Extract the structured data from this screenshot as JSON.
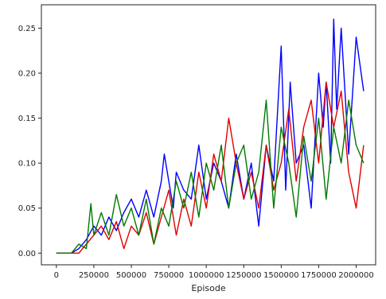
{
  "chart_data": {
    "type": "line",
    "title": "",
    "xlabel": "Episode",
    "ylabel": "",
    "xlim": [
      -100000,
      2130000
    ],
    "ylim": [
      -0.013,
      0.276
    ],
    "x_ticks": [
      0,
      250000,
      500000,
      750000,
      1000000,
      1250000,
      1500000,
      1750000,
      2000000
    ],
    "x_tick_labels": [
      "0",
      "250000",
      "500000",
      "750000",
      "1000000",
      "1250000",
      "1500000",
      "1750000",
      "2000000"
    ],
    "y_ticks": [
      0.0,
      0.05,
      0.1,
      0.15,
      0.2,
      0.25
    ],
    "y_tick_labels": [
      "0.00",
      "0.05",
      "0.10",
      "0.15",
      "0.20",
      "0.25"
    ],
    "grid": false,
    "series": [
      {
        "color": "#0000ff",
        "x": [
          0,
          100000,
          150000,
          200000,
          250000,
          300000,
          350000,
          400000,
          450000,
          500000,
          550000,
          600000,
          650000,
          700000,
          720000,
          780000,
          800000,
          850000,
          900000,
          950000,
          1000000,
          1050000,
          1100000,
          1150000,
          1200000,
          1250000,
          1300000,
          1350000,
          1400000,
          1450000,
          1500000,
          1530000,
          1560000,
          1600000,
          1650000,
          1700000,
          1750000,
          1780000,
          1800000,
          1830000,
          1850000,
          1870000,
          1900000,
          1950000,
          2000000,
          2050000
        ],
        "y": [
          0,
          0,
          0.005,
          0.015,
          0.03,
          0.02,
          0.04,
          0.025,
          0.045,
          0.06,
          0.04,
          0.07,
          0.04,
          0.08,
          0.11,
          0.05,
          0.09,
          0.07,
          0.06,
          0.12,
          0.06,
          0.1,
          0.08,
          0.05,
          0.11,
          0.06,
          0.1,
          0.03,
          0.12,
          0.08,
          0.23,
          0.07,
          0.19,
          0.1,
          0.12,
          0.05,
          0.2,
          0.14,
          0.19,
          0.1,
          0.26,
          0.16,
          0.25,
          0.11,
          0.24,
          0.18
        ]
      },
      {
        "color": "#e00000",
        "x": [
          0,
          150000,
          200000,
          250000,
          300000,
          350000,
          400000,
          450000,
          500000,
          550000,
          600000,
          650000,
          700000,
          750000,
          800000,
          850000,
          900000,
          950000,
          1000000,
          1050000,
          1100000,
          1150000,
          1200000,
          1250000,
          1300000,
          1350000,
          1400000,
          1450000,
          1500000,
          1550000,
          1600000,
          1650000,
          1700000,
          1750000,
          1800000,
          1850000,
          1900000,
          1950000,
          2000000,
          2050000
        ],
        "y": [
          0,
          0,
          0.01,
          0.02,
          0.03,
          0.015,
          0.035,
          0.005,
          0.03,
          0.02,
          0.045,
          0.01,
          0.04,
          0.07,
          0.02,
          0.06,
          0.03,
          0.09,
          0.05,
          0.11,
          0.08,
          0.15,
          0.1,
          0.06,
          0.09,
          0.05,
          0.12,
          0.07,
          0.1,
          0.16,
          0.08,
          0.14,
          0.17,
          0.1,
          0.19,
          0.14,
          0.18,
          0.09,
          0.05,
          0.12
        ]
      },
      {
        "color": "#007a00",
        "x": [
          0,
          100000,
          150000,
          200000,
          230000,
          250000,
          300000,
          350000,
          400000,
          450000,
          500000,
          550000,
          600000,
          650000,
          700000,
          750000,
          800000,
          850000,
          900000,
          950000,
          1000000,
          1050000,
          1100000,
          1150000,
          1200000,
          1250000,
          1300000,
          1350000,
          1400000,
          1450000,
          1500000,
          1550000,
          1600000,
          1650000,
          1700000,
          1750000,
          1800000,
          1850000,
          1900000,
          1950000,
          2000000,
          2050000
        ],
        "y": [
          0,
          0,
          0.01,
          0.005,
          0.055,
          0.02,
          0.045,
          0.02,
          0.065,
          0.03,
          0.05,
          0.02,
          0.06,
          0.01,
          0.05,
          0.03,
          0.08,
          0.05,
          0.09,
          0.04,
          0.1,
          0.07,
          0.12,
          0.05,
          0.1,
          0.12,
          0.06,
          0.09,
          0.17,
          0.05,
          0.14,
          0.1,
          0.04,
          0.13,
          0.08,
          0.15,
          0.06,
          0.14,
          0.1,
          0.17,
          0.12,
          0.1
        ]
      }
    ]
  }
}
